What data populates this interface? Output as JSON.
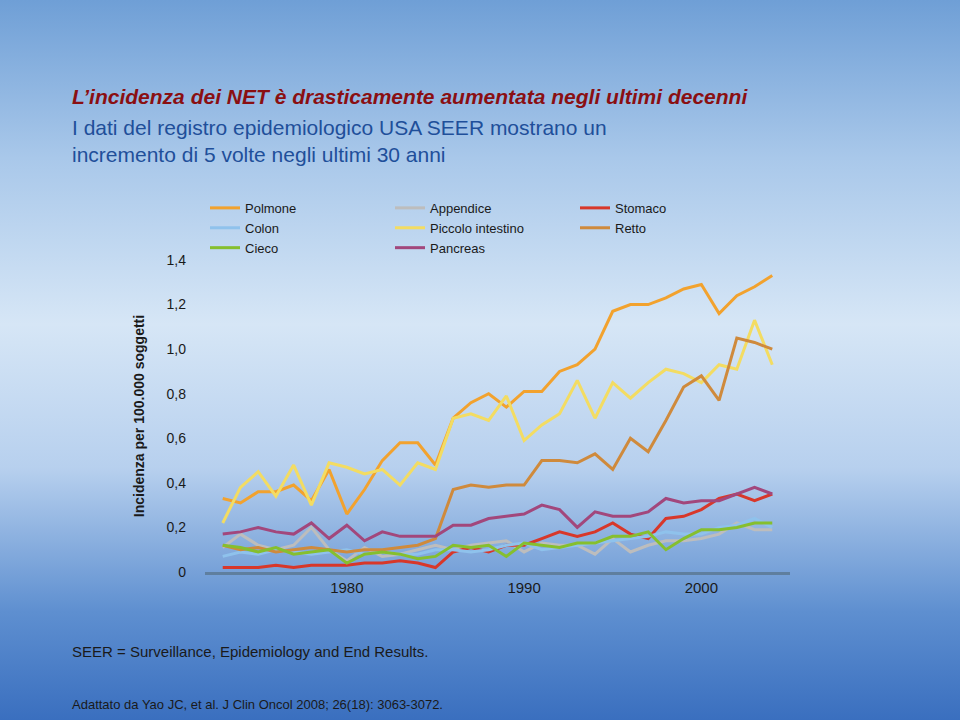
{
  "chart_data": {
    "type": "line",
    "title": "L’incidenza dei NET è drasticamente aumentata negli ultimi decenni",
    "subtitle": [
      "I dati del registro epidemiologico USA SEER mostrano un",
      "incremento di 5 volte negli ultimi 30 anni"
    ],
    "y_label": "Incidenza per 100.000 soggetti",
    "annotations": [
      "SEER = Surveillance, Epidemiology and End Results.",
      "Adattato da Yao JC, et al. J Clin Oncol 2008; 26(18): 3063-3072."
    ],
    "x": [
      1973,
      1974,
      1975,
      1976,
      1977,
      1978,
      1979,
      1980,
      1981,
      1982,
      1983,
      1984,
      1985,
      1986,
      1987,
      1988,
      1989,
      1990,
      1991,
      1992,
      1993,
      1994,
      1995,
      1996,
      1997,
      1998,
      1999,
      2000,
      2001,
      2002,
      2003,
      2004
    ],
    "xlim": [
      1972,
      2005
    ],
    "xticks": [
      1980,
      1990,
      2000
    ],
    "ylim": [
      0,
      1.4
    ],
    "yticks": [
      0,
      {
        "value": 0.2,
        "label": "0,2"
      },
      {
        "value": 0.4,
        "label": "0,4"
      },
      {
        "value": 0.6,
        "label": "0,6"
      },
      {
        "value": 0.8,
        "label": "0,8"
      },
      {
        "value": 1.0,
        "label": "1,0"
      },
      {
        "value": 1.2,
        "label": "1,2"
      },
      {
        "value": 1.4,
        "label": "1,4"
      }
    ],
    "grid": false,
    "legend": "top",
    "series": [
      {
        "name": "Polmone",
        "color": "#f2a22e",
        "values": [
          0.33,
          0.31,
          0.36,
          0.36,
          0.39,
          0.32,
          0.46,
          0.26,
          0.37,
          0.5,
          0.58,
          0.58,
          0.48,
          0.69,
          0.76,
          0.8,
          0.74,
          0.81,
          0.81,
          0.9,
          0.93,
          1.0,
          1.17,
          1.2,
          1.2,
          1.23,
          1.27,
          1.29,
          1.16,
          1.24,
          1.28,
          1.33
        ]
      },
      {
        "name": "Appendice",
        "color": "#bdbdbd",
        "values": [
          0.11,
          0.17,
          0.12,
          0.1,
          0.12,
          0.2,
          0.1,
          0.05,
          0.11,
          0.07,
          0.08,
          0.1,
          0.12,
          0.1,
          0.12,
          0.13,
          0.14,
          0.09,
          0.13,
          0.12,
          0.12,
          0.08,
          0.15,
          0.09,
          0.12,
          0.14,
          0.14,
          0.15,
          0.17,
          0.22,
          0.19,
          0.19
        ]
      },
      {
        "name": "Stomaco",
        "color": "#d8372a",
        "values": [
          0.02,
          0.02,
          0.02,
          0.03,
          0.02,
          0.03,
          0.03,
          0.03,
          0.04,
          0.04,
          0.05,
          0.04,
          0.02,
          0.09,
          0.11,
          0.09,
          0.12,
          0.12,
          0.15,
          0.18,
          0.16,
          0.18,
          0.22,
          0.17,
          0.15,
          0.24,
          0.25,
          0.28,
          0.33,
          0.35,
          0.32,
          0.35
        ]
      },
      {
        "name": "Colon",
        "color": "#8fc2ec",
        "values": [
          0.07,
          0.09,
          0.08,
          0.1,
          0.09,
          0.08,
          0.09,
          0.1,
          0.08,
          0.09,
          0.08,
          0.08,
          0.1,
          0.1,
          0.09,
          0.1,
          0.12,
          0.13,
          0.1,
          0.11,
          0.12,
          0.13,
          0.14,
          0.15,
          0.16,
          0.18,
          0.17,
          0.17,
          0.2,
          0.21,
          0.24,
          0.2
        ]
      },
      {
        "name": "Piccolo intestino",
        "color": "#f3dc62",
        "values": [
          0.22,
          0.38,
          0.45,
          0.34,
          0.48,
          0.3,
          0.49,
          0.47,
          0.44,
          0.46,
          0.39,
          0.49,
          0.46,
          0.69,
          0.71,
          0.68,
          0.79,
          0.59,
          0.66,
          0.71,
          0.86,
          0.69,
          0.85,
          0.78,
          0.85,
          0.91,
          0.89,
          0.85,
          0.93,
          0.91,
          1.13,
          0.93
        ]
      },
      {
        "name": "Retto",
        "color": "#cf8a3c",
        "values": [
          0.12,
          0.1,
          0.11,
          0.09,
          0.1,
          0.11,
          0.1,
          0.09,
          0.1,
          0.1,
          0.11,
          0.12,
          0.15,
          0.37,
          0.39,
          0.38,
          0.39,
          0.39,
          0.5,
          0.5,
          0.49,
          0.53,
          0.46,
          0.6,
          0.54,
          0.68,
          0.83,
          0.88,
          0.77,
          1.05,
          1.03,
          1.0
        ]
      },
      {
        "name": "Cieco",
        "color": "#86bf2e",
        "values": [
          0.12,
          0.11,
          0.09,
          0.11,
          0.08,
          0.09,
          0.1,
          0.04,
          0.08,
          0.09,
          0.08,
          0.06,
          0.07,
          0.12,
          0.11,
          0.12,
          0.07,
          0.13,
          0.12,
          0.11,
          0.13,
          0.13,
          0.16,
          0.16,
          0.18,
          0.1,
          0.15,
          0.19,
          0.19,
          0.2,
          0.22,
          0.22
        ]
      },
      {
        "name": "Pancreas",
        "color": "#a2477c",
        "values": [
          0.17,
          0.18,
          0.2,
          0.18,
          0.17,
          0.22,
          0.15,
          0.21,
          0.14,
          0.18,
          0.16,
          0.16,
          0.16,
          0.21,
          0.21,
          0.24,
          0.25,
          0.26,
          0.3,
          0.28,
          0.2,
          0.27,
          0.25,
          0.25,
          0.27,
          0.33,
          0.31,
          0.32,
          0.32,
          0.35,
          0.38,
          0.35
        ]
      }
    ]
  }
}
